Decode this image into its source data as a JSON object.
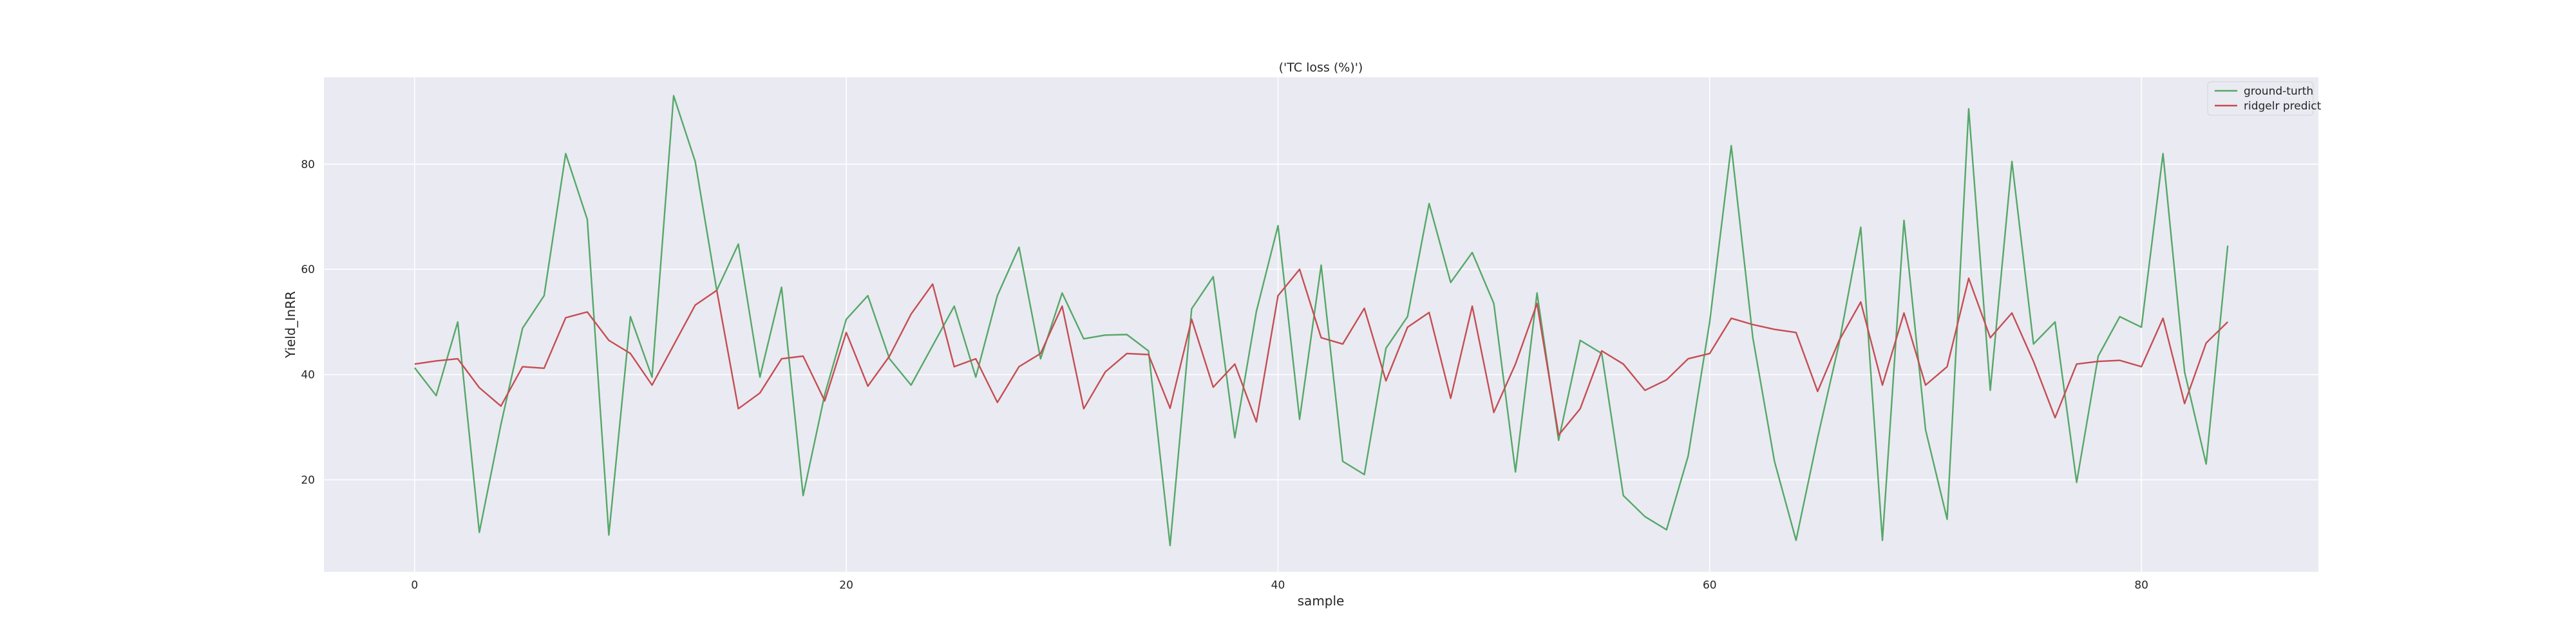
{
  "chart_data": {
    "type": "line",
    "title": "('TC loss (%)')",
    "xlabel": "sample",
    "ylabel": "Yield_InRR",
    "xlim": [
      -4.2,
      88.2
    ],
    "ylim": [
      2.5,
      96.5
    ],
    "xticks": [
      0,
      20,
      40,
      60,
      80
    ],
    "yticks": [
      20,
      40,
      60,
      80
    ],
    "grid": true,
    "legend_position": "top-right",
    "background": "#eaeaf2",
    "series": [
      {
        "name": "ground-turth",
        "color": "#55a868",
        "values": [
          41.3,
          36.0,
          50.0,
          10.0,
          30.5,
          48.8,
          55.0,
          82.0,
          69.5,
          9.5,
          51.0,
          39.5,
          93.0,
          80.5,
          56.0,
          64.8,
          39.5,
          56.6,
          17.0,
          36.2,
          50.5,
          55.0,
          43.0,
          38.0,
          45.5,
          53.0,
          39.5,
          55.0,
          64.2,
          43.0,
          55.5,
          46.8,
          47.5,
          47.6,
          44.5,
          7.5,
          52.5,
          58.6,
          28.0,
          52.0,
          68.3,
          31.5,
          60.8,
          23.5,
          21.0,
          45.0,
          51.0,
          72.5,
          57.5,
          63.2,
          53.5,
          21.5,
          55.5,
          27.5,
          46.5,
          44.0,
          17.0,
          13.0,
          10.5,
          24.5,
          50.0,
          83.5,
          47.0,
          23.5,
          8.5,
          28.0,
          46.0,
          68.0,
          8.5,
          69.3,
          29.5,
          12.5,
          90.5,
          37.0,
          80.5,
          45.8,
          50.0,
          19.5,
          43.5,
          51.0,
          49.0,
          82.0,
          40.5,
          23.0,
          64.5
        ]
      },
      {
        "name": "ridgelr predict",
        "color": "#c44e52",
        "values": [
          42.0,
          42.6,
          43.0,
          37.5,
          34.0,
          41.5,
          41.2,
          50.8,
          51.9,
          46.5,
          44.0,
          38.0,
          45.6,
          53.2,
          56.0,
          33.5,
          36.5,
          43.0,
          43.5,
          35.0,
          48.0,
          37.8,
          43.5,
          51.5,
          57.2,
          41.5,
          43.0,
          34.7,
          41.5,
          44.0,
          53.0,
          33.5,
          40.5,
          44.0,
          43.8,
          33.6,
          50.5,
          37.6,
          42.0,
          31.0,
          55.0,
          60.0,
          47.0,
          45.8,
          52.6,
          38.8,
          49.0,
          51.8,
          35.5,
          53.0,
          32.8,
          42.0,
          53.5,
          28.5,
          33.5,
          44.5,
          42.0,
          37.0,
          39.0,
          43.0,
          44.0,
          50.7,
          49.5,
          48.6,
          48.0,
          36.8,
          46.5,
          53.8,
          38.0,
          51.7,
          38.0,
          41.5,
          58.3,
          47.0,
          51.7,
          42.5,
          31.8,
          42.0,
          42.5,
          42.7,
          41.5,
          50.7,
          34.5,
          46.0,
          50.0
        ]
      }
    ]
  }
}
